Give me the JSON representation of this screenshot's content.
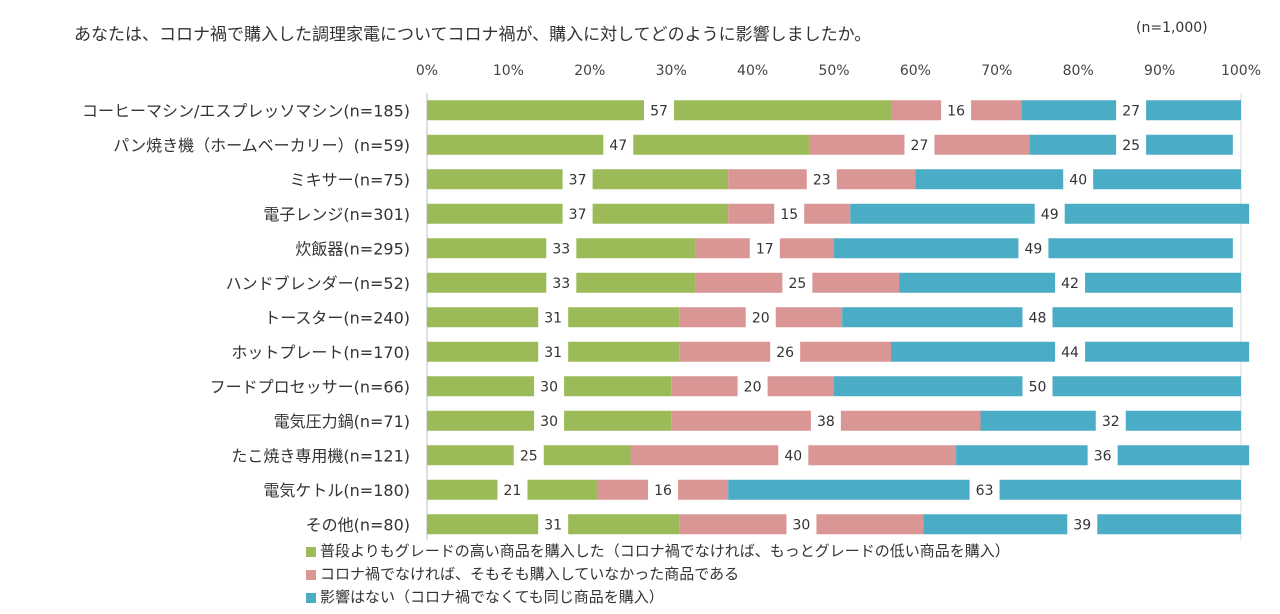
{
  "title": "あなたは、コロナ禍で購入した調理家電についてコロナ禍が、購入に対してどのように影響しましたか。",
  "sample_note": "(n=1,000)",
  "colors": {
    "series1": "#9bbb59",
    "series2": "#d99694",
    "series3": "#4bacc6"
  },
  "chart_data": {
    "type": "bar",
    "orientation": "horizontal",
    "stacked": "percent",
    "title": "あなたは、コロナ禍で購入した調理家電についてコロナ禍が、購入に対してどのように影響しましたか。",
    "categories": [
      "コーヒーマシン/エスプレッソマシン(n=185)",
      "パン焼き機（ホームベーカリー）(n=59)",
      "ミキサー(n=75)",
      "電子レンジ(n=301)",
      "炊飯器(n=295)",
      "ハンドブレンダー(n=52)",
      "トースター(n=240)",
      "ホットプレート(n=170)",
      "フードプロセッサー(n=66)",
      "電気圧力鍋(n=71)",
      "たこ焼き専用機(n=121)",
      "電気ケトル(n=180)",
      "その他(n=80)"
    ],
    "series": [
      {
        "name": "普段よりもグレードの高い商品を購入した（コロナ禍でなければ、もっとグレードの低い商品を購入）",
        "values": [
          57,
          47,
          37,
          37,
          33,
          33,
          31,
          31,
          30,
          30,
          25,
          21,
          31
        ]
      },
      {
        "name": "コロナ禍でなければ、そもそも購入していなかった商品である",
        "values": [
          16,
          27,
          23,
          15,
          17,
          25,
          20,
          26,
          20,
          38,
          40,
          16,
          30
        ]
      },
      {
        "name": "影響はない（コロナ禍でなくても同じ商品を購入）",
        "values": [
          27,
          25,
          40,
          49,
          49,
          42,
          48,
          44,
          50,
          32,
          36,
          63,
          39
        ]
      }
    ],
    "x_ticks": [
      "0%",
      "10%",
      "20%",
      "30%",
      "40%",
      "50%",
      "60%",
      "70%",
      "80%",
      "90%",
      "100%"
    ],
    "xlim": [
      0,
      100
    ],
    "grid": false,
    "legend_position": "bottom"
  }
}
